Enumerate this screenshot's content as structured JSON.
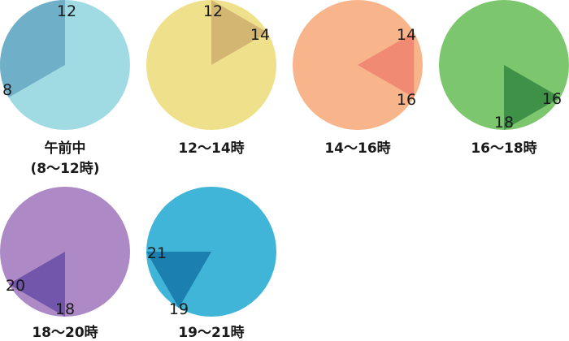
{
  "clocks": [
    {
      "caption_lines": [
        "午前中",
        "(8〜12時)"
      ],
      "start_hour": 8,
      "end_hour": 12,
      "face_color": "#a0dbe3",
      "slice_color": "#6fb0c8",
      "labels": [
        "12",
        "8"
      ]
    },
    {
      "caption_lines": [
        "12〜14時"
      ],
      "start_hour": 12,
      "end_hour": 14,
      "face_color": "#efe08c",
      "slice_color": "#d2b672",
      "labels": [
        "12",
        "14"
      ]
    },
    {
      "caption_lines": [
        "14〜16時"
      ],
      "start_hour": 14,
      "end_hour": 16,
      "face_color": "#f8b48a",
      "slice_color": "#f08a72",
      "labels": [
        "14",
        "16"
      ]
    },
    {
      "caption_lines": [
        "16〜18時"
      ],
      "start_hour": 16,
      "end_hour": 18,
      "face_color": "#7cc66e",
      "slice_color": "#3f9147",
      "labels": [
        "16",
        "18"
      ]
    },
    {
      "caption_lines": [
        "18〜20時"
      ],
      "start_hour": 18,
      "end_hour": 20,
      "face_color": "#ad8ac6",
      "slice_color": "#7256ac",
      "labels": [
        "18",
        "20"
      ]
    },
    {
      "caption_lines": [
        "19〜21時"
      ],
      "start_hour": 19,
      "end_hour": 21,
      "face_color": "#40b5d8",
      "slice_color": "#1b7fb0",
      "labels": [
        "21",
        "19"
      ]
    }
  ]
}
